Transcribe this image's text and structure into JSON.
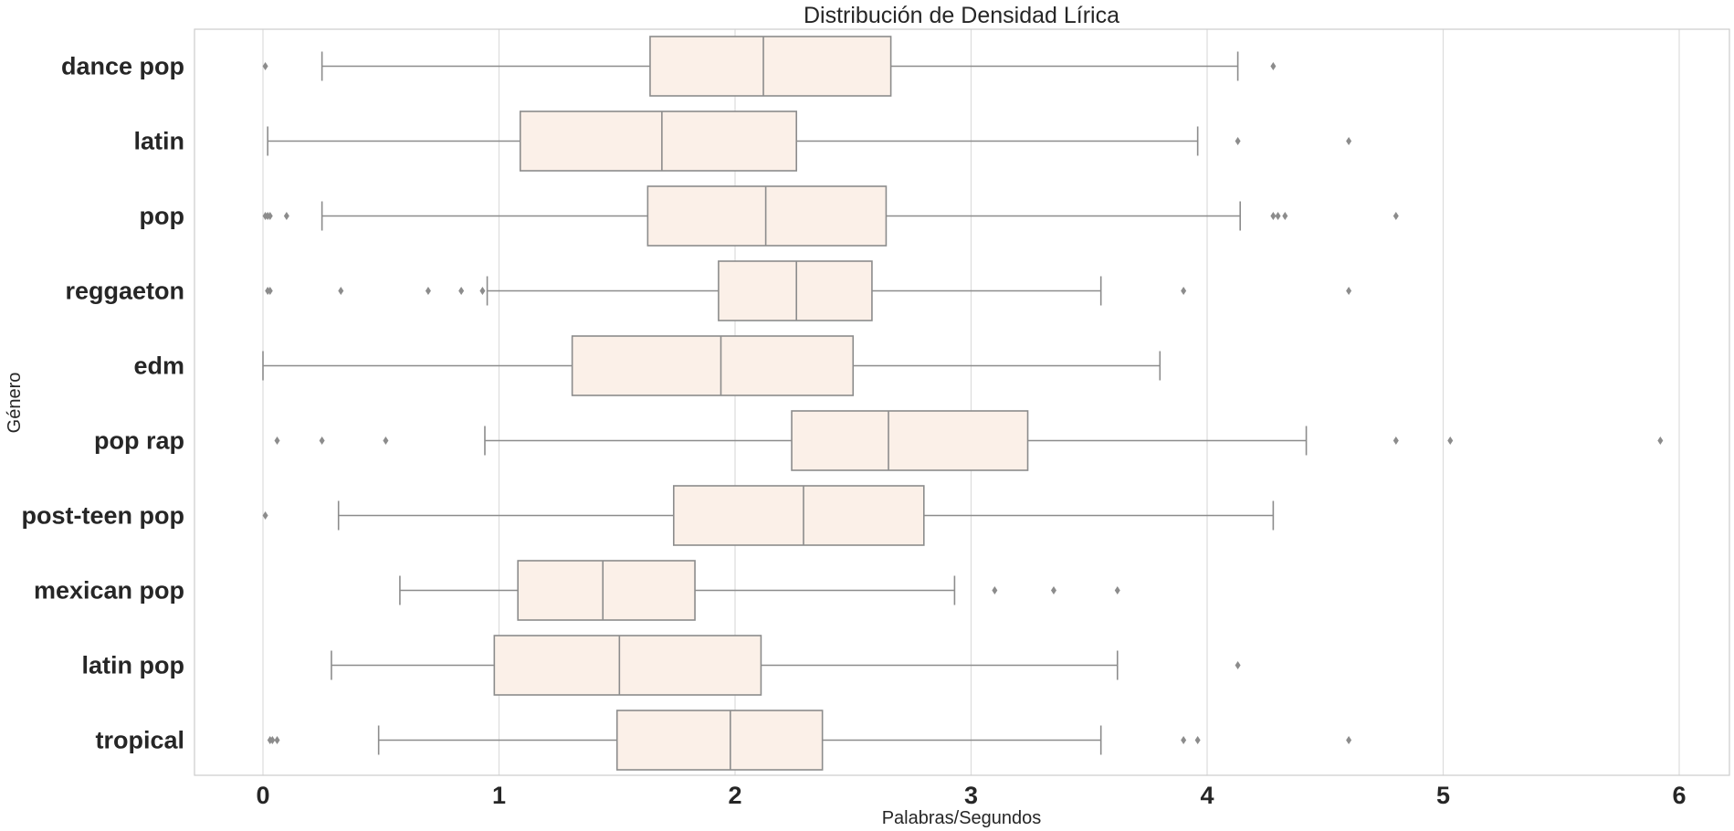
{
  "chart_data": {
    "type": "boxplot",
    "orientation": "horizontal",
    "title": "Distribución de Densidad Lírica",
    "xlabel": "Palabras/Segundos",
    "ylabel": "Género",
    "xlim": [
      -0.3,
      6.2
    ],
    "xticks": [
      0,
      1,
      2,
      3,
      4,
      5,
      6
    ],
    "grid": "vertical",
    "box_color": "#fbf0e8",
    "line_color": "#8c8c8c",
    "categories": [
      "dance pop",
      "latin",
      "pop",
      "reggaeton",
      "edm",
      "pop rap",
      "post-teen pop",
      "mexican pop",
      "latin pop",
      "tropical"
    ],
    "boxes": [
      {
        "whislo": 0.25,
        "q1": 1.64,
        "median": 2.12,
        "q3": 2.66,
        "whishi": 4.13,
        "fliers": [
          0.01,
          4.28
        ]
      },
      {
        "whislo": 0.02,
        "q1": 1.09,
        "median": 1.69,
        "q3": 2.26,
        "whishi": 3.96,
        "fliers": [
          4.13,
          4.6
        ]
      },
      {
        "whislo": 0.25,
        "q1": 1.63,
        "median": 2.13,
        "q3": 2.64,
        "whishi": 4.14,
        "fliers": [
          0.01,
          0.02,
          0.03,
          0.1,
          4.28,
          4.3,
          4.33,
          4.8
        ]
      },
      {
        "whislo": 0.95,
        "q1": 1.93,
        "median": 2.26,
        "q3": 2.58,
        "whishi": 3.55,
        "fliers": [
          0.02,
          0.03,
          0.33,
          0.7,
          0.84,
          0.93,
          3.9,
          4.6
        ]
      },
      {
        "whislo": 0.0,
        "q1": 1.31,
        "median": 1.94,
        "q3": 2.5,
        "whishi": 3.8,
        "fliers": []
      },
      {
        "whislo": 0.94,
        "q1": 2.24,
        "median": 2.65,
        "q3": 3.24,
        "whishi": 4.42,
        "fliers": [
          0.06,
          0.25,
          0.52,
          4.8,
          5.03,
          5.92
        ]
      },
      {
        "whislo": 0.32,
        "q1": 1.74,
        "median": 2.29,
        "q3": 2.8,
        "whishi": 4.28,
        "fliers": [
          0.01
        ]
      },
      {
        "whislo": 0.58,
        "q1": 1.08,
        "median": 1.44,
        "q3": 1.83,
        "whishi": 2.93,
        "fliers": [
          3.1,
          3.35,
          3.62
        ]
      },
      {
        "whislo": 0.29,
        "q1": 0.98,
        "median": 1.51,
        "q3": 2.11,
        "whishi": 3.62,
        "fliers": [
          4.13
        ]
      },
      {
        "whislo": 0.49,
        "q1": 1.5,
        "median": 1.98,
        "q3": 2.37,
        "whishi": 3.55,
        "fliers": [
          0.03,
          0.04,
          0.06,
          3.9,
          3.96,
          4.6
        ]
      }
    ]
  }
}
